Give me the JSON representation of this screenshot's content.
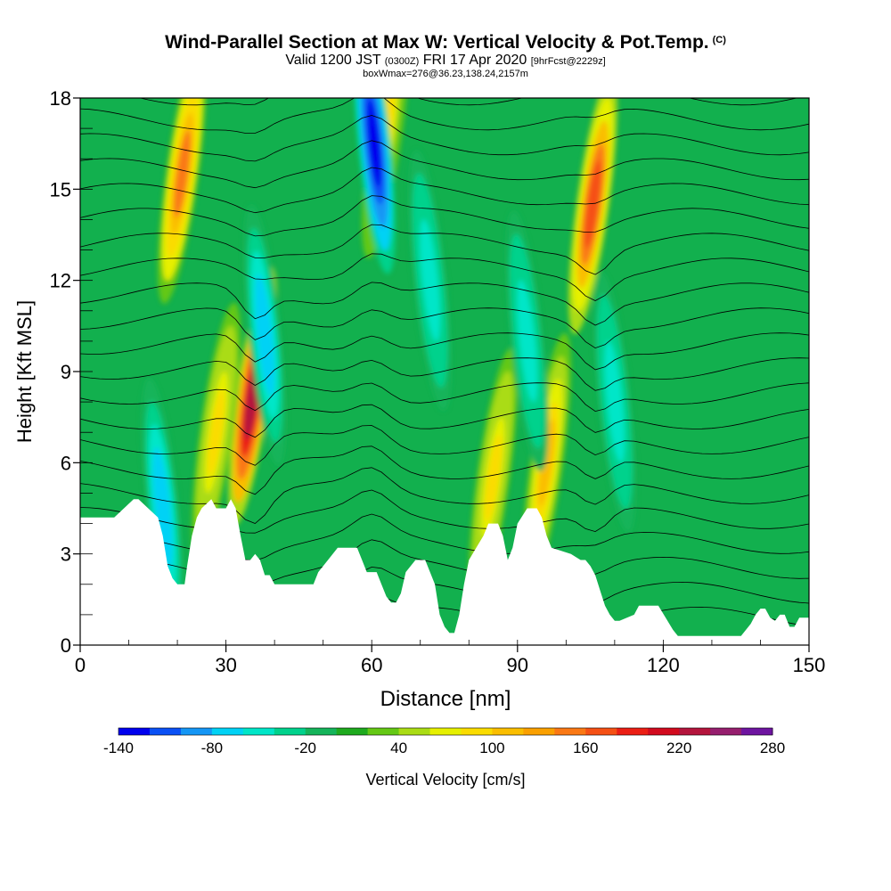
{
  "header": {
    "title": "Wind-Parallel Section at Max W: Vertical Velocity & Pot.Temp.",
    "copyright": "(C)",
    "valid_a": "Valid 1200 JST",
    "valid_utc": "(0300Z)",
    "valid_b": "FRI 17 Apr 2020",
    "forecast": "[9hrFcst@2229z]",
    "box_info": "boxWmax=276@36.23,138.24,2157m"
  },
  "chart_data": {
    "type": "heatmap",
    "title": "Wind-Parallel Section at Max W: Vertical Velocity & Pot.Temp.",
    "xlabel": "Distance [nm]",
    "ylabel": "Height [Kft MSL]",
    "xlim": [
      0,
      150
    ],
    "ylim": [
      0,
      18
    ],
    "xticks": [
      0,
      30,
      60,
      90,
      120,
      150
    ],
    "yticks": [
      0,
      3,
      6,
      9,
      12,
      15,
      18
    ],
    "colorbar": {
      "label": "Vertical Velocity [cm/s]",
      "min": -140,
      "max": 280,
      "step": 20,
      "tick_labels": [
        "-140",
        "-80",
        "-20",
        "40",
        "100",
        "160",
        "220",
        "280"
      ],
      "colors": [
        "#0000ee",
        "#0a50f5",
        "#1496f5",
        "#00d2f5",
        "#00e6c8",
        "#00d28c",
        "#14b45a",
        "#1eaa1e",
        "#64c814",
        "#aadc14",
        "#e6f000",
        "#fadc00",
        "#fabe00",
        "#faa000",
        "#fa7814",
        "#f55014",
        "#eb1e14",
        "#d20a1e",
        "#b4143c",
        "#961e6e",
        "#6e14a0"
      ]
    },
    "terrain_kft": [
      [
        0,
        4.2
      ],
      [
        7,
        4.2
      ],
      [
        9,
        4.5
      ],
      [
        11,
        4.8
      ],
      [
        12,
        4.8
      ],
      [
        14,
        4.5
      ],
      [
        16,
        4.2
      ],
      [
        17,
        3.6
      ],
      [
        18,
        2.6
      ],
      [
        19,
        2.2
      ],
      [
        20,
        2.0
      ],
      [
        21.5,
        2.0
      ],
      [
        22,
        2.6
      ],
      [
        23,
        3.6
      ],
      [
        24,
        4.2
      ],
      [
        25,
        4.5
      ],
      [
        27,
        4.8
      ],
      [
        28,
        4.5
      ],
      [
        29,
        4.5
      ],
      [
        30,
        4.5
      ],
      [
        31,
        4.8
      ],
      [
        32,
        4.5
      ],
      [
        33,
        3.6
      ],
      [
        34,
        2.8
      ],
      [
        35,
        2.8
      ],
      [
        36,
        3.0
      ],
      [
        37,
        2.8
      ],
      [
        38,
        2.3
      ],
      [
        39,
        2.3
      ],
      [
        40,
        2.0
      ],
      [
        48,
        2.0
      ],
      [
        49,
        2.4
      ],
      [
        51,
        2.8
      ],
      [
        53,
        3.2
      ],
      [
        57,
        3.2
      ],
      [
        58,
        2.8
      ],
      [
        59,
        2.4
      ],
      [
        61,
        2.4
      ],
      [
        62,
        2.0
      ],
      [
        63,
        1.6
      ],
      [
        64,
        1.4
      ],
      [
        65,
        1.4
      ],
      [
        66,
        1.7
      ],
      [
        67,
        2.4
      ],
      [
        69,
        2.8
      ],
      [
        71,
        2.8
      ],
      [
        73,
        2.0
      ],
      [
        74,
        1.0
      ],
      [
        75,
        0.6
      ],
      [
        76,
        0.4
      ],
      [
        77,
        0.4
      ],
      [
        78,
        1.0
      ],
      [
        79,
        2.0
      ],
      [
        80,
        2.8
      ],
      [
        83,
        3.6
      ],
      [
        84,
        4.0
      ],
      [
        86,
        4.0
      ],
      [
        87,
        3.6
      ],
      [
        88,
        2.8
      ],
      [
        89,
        3.2
      ],
      [
        90,
        4.0
      ],
      [
        92,
        4.5
      ],
      [
        94,
        4.5
      ],
      [
        95,
        4.2
      ],
      [
        96,
        3.6
      ],
      [
        97,
        3.2
      ],
      [
        101,
        3.0
      ],
      [
        103,
        2.8
      ],
      [
        104,
        2.8
      ],
      [
        105,
        2.6
      ],
      [
        106,
        2.3
      ],
      [
        107,
        1.8
      ],
      [
        108,
        1.3
      ],
      [
        109,
        1.0
      ],
      [
        110,
        0.8
      ],
      [
        111,
        0.8
      ],
      [
        114,
        1.0
      ],
      [
        115,
        1.3
      ],
      [
        119,
        1.3
      ],
      [
        122,
        0.5
      ],
      [
        123,
        0.3
      ],
      [
        136,
        0.3
      ],
      [
        138,
        0.7
      ],
      [
        139,
        1.0
      ],
      [
        140,
        1.2
      ],
      [
        141,
        1.2
      ],
      [
        142,
        0.9
      ],
      [
        143,
        0.8
      ],
      [
        144,
        1.0
      ],
      [
        145,
        1.0
      ],
      [
        146,
        0.6
      ],
      [
        147,
        0.6
      ],
      [
        148,
        0.9
      ],
      [
        150,
        0.9
      ]
    ],
    "updrafts": [
      {
        "x": 21,
        "y": 15.5,
        "peak": 140
      },
      {
        "x": 35.5,
        "y": 8.2,
        "peak": 230
      },
      {
        "x": 28,
        "y": 7.0,
        "peak": 90
      },
      {
        "x": 105.5,
        "y": 14.5,
        "peak": 170
      },
      {
        "x": 63,
        "y": 17.0,
        "peak": 80
      },
      {
        "x": 85,
        "y": 5.5,
        "peak": 90
      },
      {
        "x": 96,
        "y": 6.0,
        "peak": 100
      }
    ],
    "downdrafts": [
      {
        "x": 60.5,
        "y": 16.5,
        "peak": -140
      },
      {
        "x": 17,
        "y": 4.5,
        "peak": -80
      },
      {
        "x": 38,
        "y": 10.2,
        "peak": -80
      },
      {
        "x": 72,
        "y": 12.0,
        "peak": -60
      },
      {
        "x": 92,
        "y": 10.0,
        "peak": -60
      },
      {
        "x": 110,
        "y": 8.0,
        "peak": -60
      }
    ]
  },
  "colorbar_label": "Vertical Velocity [cm/s]"
}
